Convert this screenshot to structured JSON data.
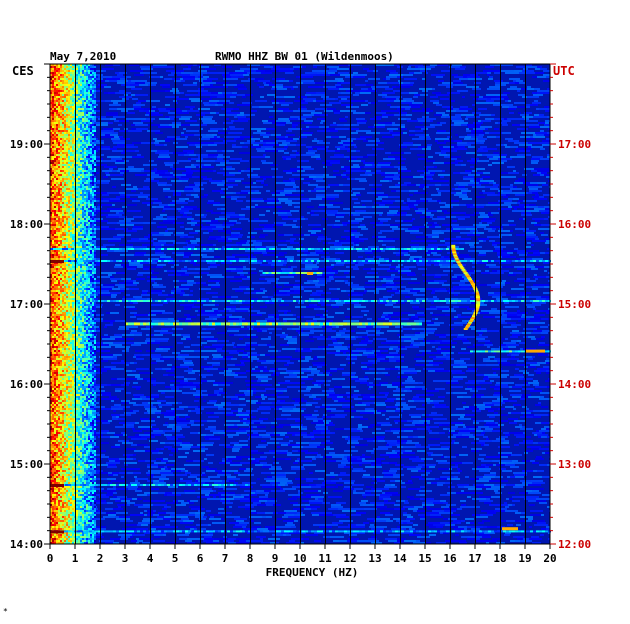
{
  "chart_data": {
    "type": "heatmap",
    "title": "RWMO HHZ BW 01 (Wildenmoos)",
    "date": "May 7,2010",
    "xlabel": "FREQUENCY (HZ)",
    "left_axis_label": "CES",
    "right_axis_label": "UTC",
    "x_ticks": [
      "0",
      "1",
      "2",
      "3",
      "4",
      "5",
      "6",
      "7",
      "8",
      "9",
      "10",
      "11",
      "12",
      "13",
      "14",
      "15",
      "16",
      "17",
      "18",
      "19",
      "20"
    ],
    "xlim": [
      0,
      20
    ],
    "left_ticks": [
      "19:00",
      "18:00",
      "17:00",
      "16:00",
      "15:00",
      "14:00"
    ],
    "right_ticks": [
      "17:00",
      "16:00",
      "15:00",
      "14:00",
      "13:00",
      "12:00"
    ],
    "left_tick_hours": [
      19,
      18,
      17,
      16,
      15,
      14
    ],
    "ylim_hours_ces": [
      14.0,
      20.0
    ],
    "grid": true,
    "colors": {
      "background": "#0016b0",
      "axis_left": "#000000",
      "axis_right": "#cc0000",
      "grid": "#000000"
    }
  },
  "corner_mark": "*"
}
